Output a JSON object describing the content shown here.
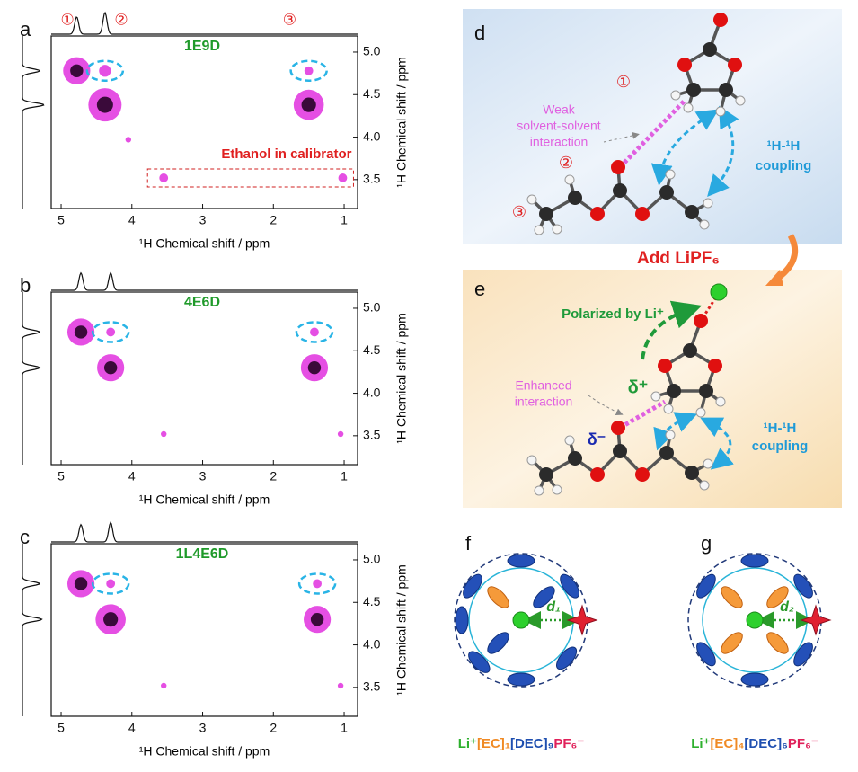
{
  "chart_data": [
    {
      "type": "scatter",
      "panel": "a",
      "title": "1E9D",
      "xlabel": "¹H Chemical shift / ppm",
      "ylabel": "¹H Chemical shift / ppm",
      "color": "#e23ce0",
      "xlim": [
        5.14,
        0.81
      ],
      "ylim": [
        3.16,
        5.19
      ],
      "xticks": [
        5,
        4,
        3,
        2,
        1
      ],
      "yticks": [
        3.5,
        {
          "value": 4,
          "label": "4.0"
        },
        4.5,
        {
          "value": 5,
          "label": "5.0"
        }
      ],
      "x": [
        4.78,
        4.38,
        4.38,
        1.5,
        1.5,
        3.55,
        1.02,
        4.05
      ],
      "values": [
        4.78,
        4.78,
        4.38,
        4.38,
        4.78,
        3.52,
        3.52,
        3.97
      ],
      "sizes": [
        8,
        3,
        10,
        9,
        2,
        2,
        2,
        1
      ],
      "annotation": "Ethanol in calibrator",
      "peak_labels": [
        {
          "text": "①",
          "x": 4.91
        },
        {
          "text": "②",
          "x": 4.15
        },
        {
          "text": "③",
          "x": 1.77
        }
      ]
    },
    {
      "type": "scatter",
      "panel": "b",
      "title": "4E6D",
      "xlabel": "¹H Chemical shift / ppm",
      "ylabel": "¹H Chemical shift / ppm",
      "color": "#e23ce0",
      "xlim": [
        5.14,
        0.81
      ],
      "ylim": [
        3.16,
        5.19
      ],
      "xticks": [
        5,
        4,
        3,
        2,
        1
      ],
      "yticks": [
        3.5,
        {
          "value": 4,
          "label": "4.0"
        },
        4.5,
        {
          "value": 5,
          "label": "5.0"
        }
      ],
      "x": [
        4.72,
        4.3,
        4.3,
        1.42,
        1.42,
        3.55,
        1.05
      ],
      "values": [
        4.72,
        4.72,
        4.3,
        4.3,
        4.72,
        3.52,
        3.52
      ],
      "sizes": [
        8,
        2,
        8,
        8,
        2,
        1,
        1
      ]
    },
    {
      "type": "scatter",
      "panel": "c",
      "title": "1L4E6D",
      "xlabel": "¹H Chemical shift / ppm",
      "ylabel": "¹H Chemical shift / ppm",
      "color": "#e23ce0",
      "xlim": [
        5.14,
        0.81
      ],
      "ylim": [
        3.16,
        5.19
      ],
      "xticks": [
        5,
        4,
        3,
        2,
        1
      ],
      "yticks": [
        3.5,
        {
          "value": 4,
          "label": "4.0"
        },
        4.5,
        {
          "value": 5,
          "label": "5.0"
        }
      ],
      "x": [
        4.72,
        4.3,
        4.3,
        1.38,
        1.38,
        3.55,
        1.05
      ],
      "values": [
        4.72,
        4.72,
        4.3,
        4.3,
        4.72,
        3.52,
        3.52
      ],
      "sizes": [
        8,
        2,
        9,
        8,
        2,
        1,
        1
      ]
    }
  ],
  "diagrams": {
    "d": {
      "label": "d",
      "note": [
        "Weak",
        "solvent-solvent",
        "interaction"
      ],
      "markers": [
        "①",
        "②",
        "③"
      ],
      "coupling": [
        "¹H-¹H",
        "coupling"
      ]
    },
    "add": "Add LiPF₆",
    "e": {
      "label": "e",
      "polarized": "Polarized by Li⁺",
      "note": [
        "Enhanced",
        "interaction"
      ],
      "delta_plus": "δ⁺",
      "delta_minus": "δ⁻",
      "coupling": [
        "¹H-¹H",
        "coupling"
      ]
    },
    "f": {
      "label": "f",
      "distance": "d₁",
      "formula": [
        {
          "text": "Li⁺",
          "color": "#2db02d"
        },
        {
          "text": "[EC]₁",
          "color": "#f08a24"
        },
        {
          "text": "[DEC]₉",
          "color": "#1f4fb0"
        },
        {
          "text": "PF₆⁻",
          "color": "#e0205a"
        }
      ]
    },
    "g": {
      "label": "g",
      "distance": "d₂",
      "formula": [
        {
          "text": "Li⁺",
          "color": "#2db02d"
        },
        {
          "text": "[EC]₄",
          "color": "#f08a24"
        },
        {
          "text": "[DEC]₆",
          "color": "#1f4fb0"
        },
        {
          "text": "PF₆⁻",
          "color": "#e0205a"
        }
      ]
    }
  }
}
